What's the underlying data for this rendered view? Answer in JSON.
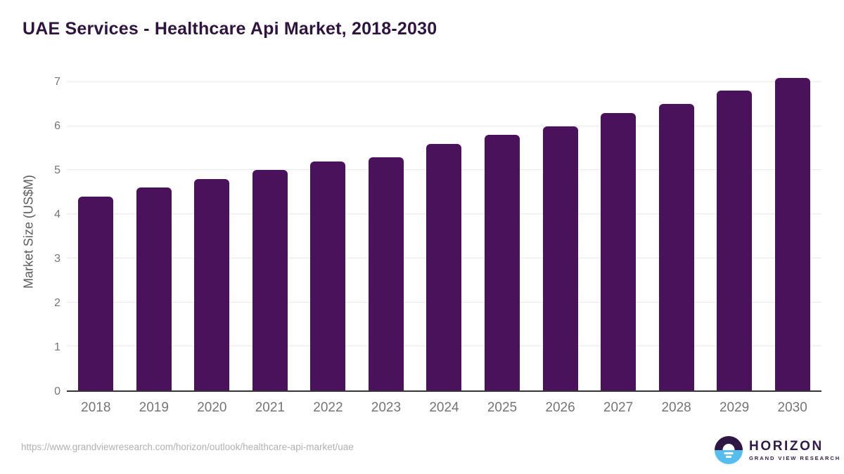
{
  "header": {
    "title": "UAE Services - Healthcare Api Market, 2018-2030",
    "title_color": "#2f1440"
  },
  "chart_data": {
    "type": "bar",
    "title": "UAE Services - Healthcare Api Market, 2018-2030",
    "categories": [
      "2018",
      "2019",
      "2020",
      "2021",
      "2022",
      "2023",
      "2024",
      "2025",
      "2026",
      "2027",
      "2028",
      "2029",
      "2030"
    ],
    "values": [
      4.4,
      4.6,
      4.8,
      5.0,
      5.2,
      5.3,
      5.6,
      5.8,
      6.0,
      6.3,
      6.5,
      6.8,
      7.1
    ],
    "xlabel": "",
    "ylabel": "Market Size (US$M)",
    "ylim": [
      0,
      7.27
    ],
    "yticks": [
      0,
      1,
      2,
      3,
      4,
      5,
      6,
      7
    ],
    "grid": true,
    "legend": false,
    "bar_color": "#49125a",
    "gridline_color": "#e9e8ea",
    "axis_line_color": "#37333b",
    "tick_label_color": "#757575"
  },
  "footer": {
    "source_url": "https://www.grandviewresearch.com/horizon/outlook/healthcare-api-market/uae",
    "logo": {
      "name": "HORIZON",
      "subtitle": "GRAND VIEW RESEARCH",
      "circle_top_color": "#2e1843",
      "circle_bottom_color": "#56beef"
    }
  }
}
